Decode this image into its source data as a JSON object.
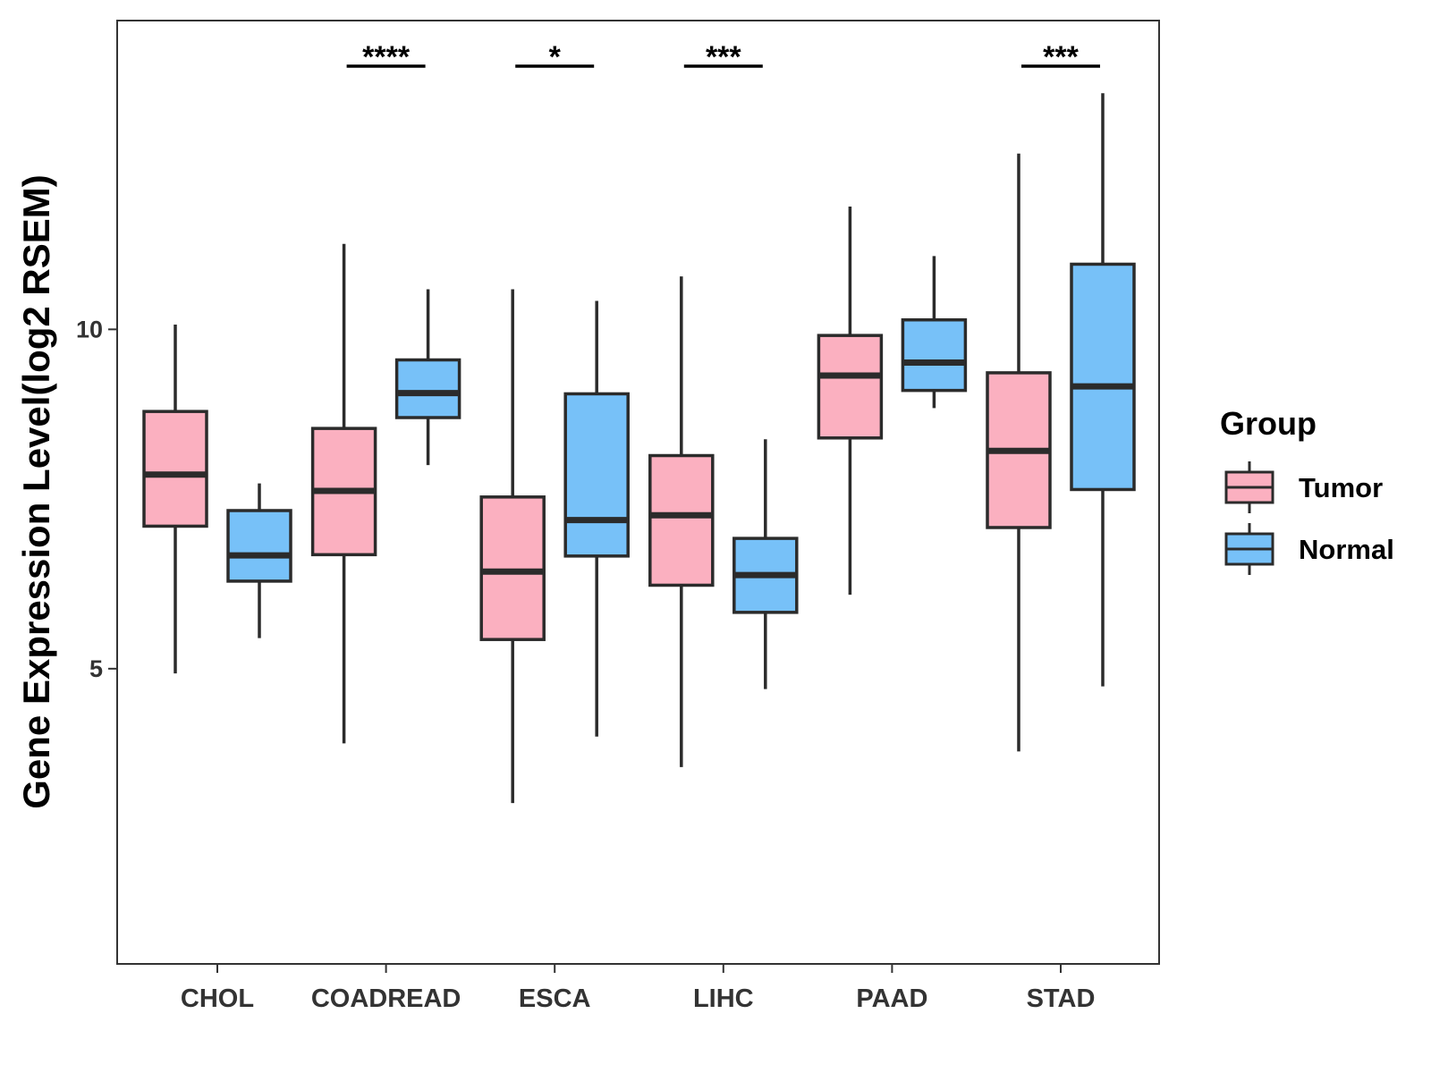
{
  "chart_data": {
    "type": "box",
    "title": "",
    "xlabel": "",
    "ylabel": "Gene Expression Level(log2 RSEM)",
    "ylim": [
      0.65,
      14.55
    ],
    "yticks": [
      5,
      10
    ],
    "categories": [
      "CHOL",
      "COADREAD",
      "ESCA",
      "LIHC",
      "PAAD",
      "STAD"
    ],
    "grid": false,
    "legend": {
      "title": "Group",
      "position": "right",
      "entries": [
        {
          "name": "Tumor",
          "color": "#FBB0C0"
        },
        {
          "name": "Normal",
          "color": "#77C1F8"
        }
      ]
    },
    "series": [
      {
        "name": "Tumor",
        "color": "#FBB0C0",
        "boxes": [
          {
            "category": "CHOL",
            "whisker_low": 4.93,
            "q1": 7.1,
            "median": 7.86,
            "q3": 8.79,
            "whisker_high": 10.07
          },
          {
            "category": "COADREAD",
            "whisker_low": 3.9,
            "q1": 6.68,
            "median": 7.62,
            "q3": 8.54,
            "whisker_high": 11.26
          },
          {
            "category": "ESCA",
            "whisker_low": 3.02,
            "q1": 5.43,
            "median": 6.43,
            "q3": 7.53,
            "whisker_high": 10.59
          },
          {
            "category": "LIHC",
            "whisker_low": 3.55,
            "q1": 6.23,
            "median": 7.26,
            "q3": 8.14,
            "whisker_high": 10.78
          },
          {
            "category": "PAAD",
            "whisker_low": 6.09,
            "q1": 8.4,
            "median": 9.32,
            "q3": 9.91,
            "whisker_high": 11.81
          },
          {
            "category": "STAD",
            "whisker_low": 3.78,
            "q1": 7.08,
            "median": 8.21,
            "q3": 9.36,
            "whisker_high": 12.59
          }
        ]
      },
      {
        "name": "Normal",
        "color": "#77C1F8",
        "boxes": [
          {
            "category": "CHOL",
            "whisker_low": 5.45,
            "q1": 6.29,
            "median": 6.67,
            "q3": 7.33,
            "whisker_high": 7.73
          },
          {
            "category": "COADREAD",
            "whisker_low": 8.0,
            "q1": 8.7,
            "median": 9.06,
            "q3": 9.55,
            "whisker_high": 10.59
          },
          {
            "category": "ESCA",
            "whisker_low": 4.0,
            "q1": 6.66,
            "median": 7.19,
            "q3": 9.05,
            "whisker_high": 10.42
          },
          {
            "category": "LIHC",
            "whisker_low": 4.7,
            "q1": 5.83,
            "median": 6.38,
            "q3": 6.92,
            "whisker_high": 8.38
          },
          {
            "category": "PAAD",
            "whisker_low": 8.84,
            "q1": 9.1,
            "median": 9.51,
            "q3": 10.14,
            "whisker_high": 11.08
          },
          {
            "category": "STAD",
            "whisker_low": 4.74,
            "q1": 7.64,
            "median": 9.16,
            "q3": 10.96,
            "whisker_high": 13.48
          }
        ]
      }
    ],
    "annotations": [
      {
        "category": "COADREAD",
        "label": "****"
      },
      {
        "category": "ESCA",
        "label": "*"
      },
      {
        "category": "LIHC",
        "label": "***"
      },
      {
        "category": "STAD",
        "label": "***"
      }
    ]
  }
}
